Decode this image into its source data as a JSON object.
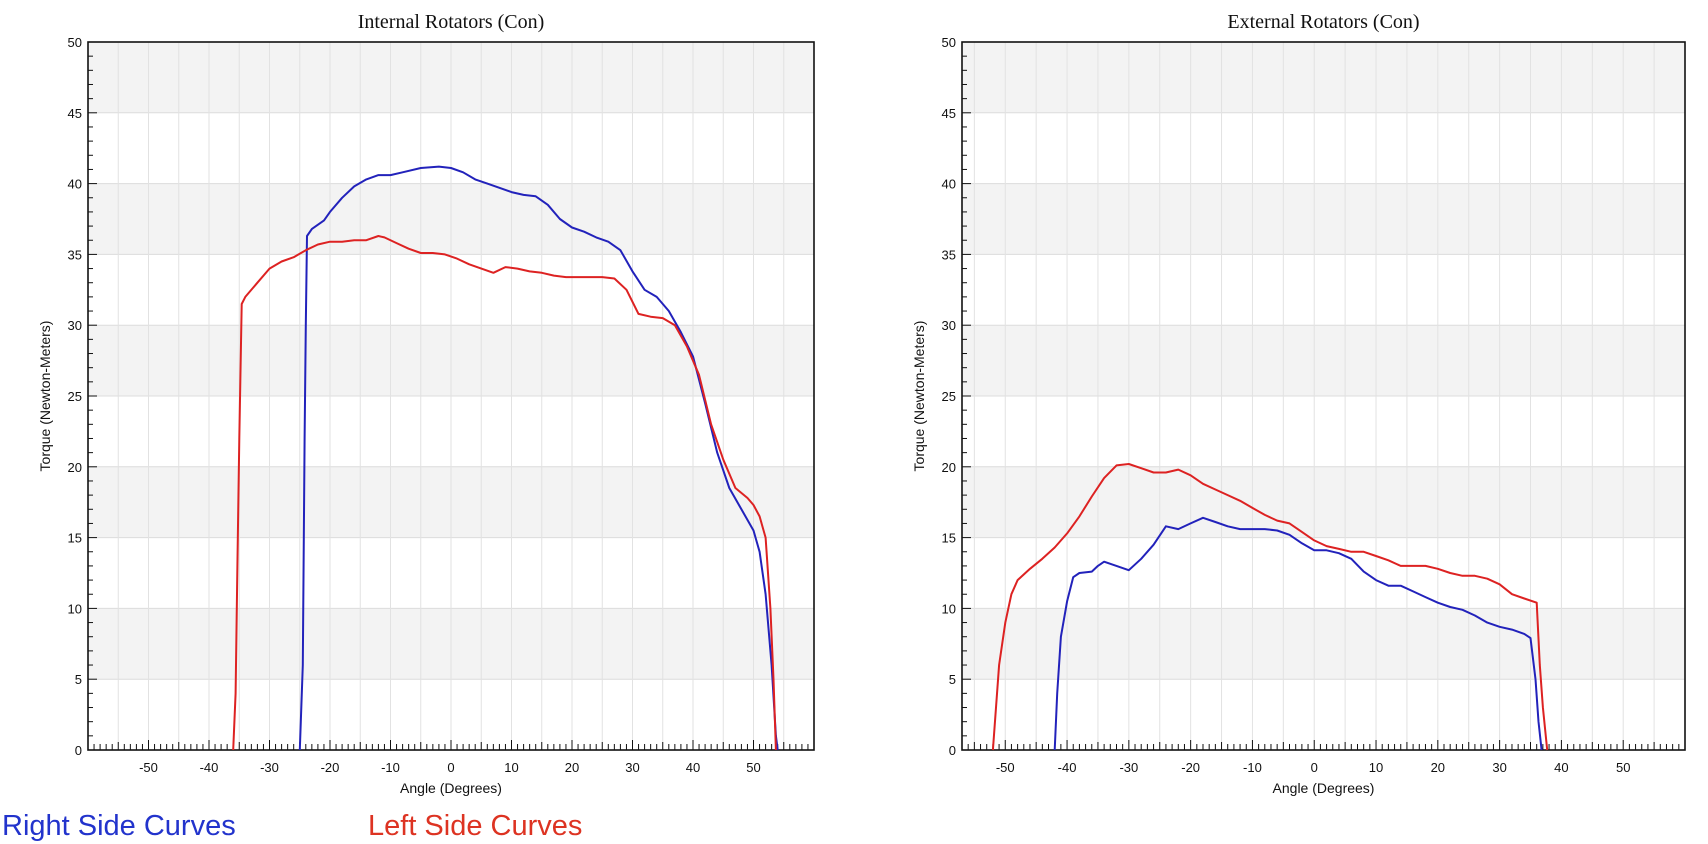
{
  "chart_data": [
    {
      "type": "line",
      "title": "Internal Rotators (Con)",
      "xlabel": "Angle (Degrees)",
      "ylabel": "Torque (Newton-Meters)",
      "xlim": [
        -60,
        60
      ],
      "ylim": [
        0,
        50
      ],
      "xticks": [
        "-50",
        "-40",
        "-30",
        "-20",
        "-10",
        "0",
        "10",
        "20",
        "30",
        "40",
        "50"
      ],
      "yticks": [
        "0",
        "5",
        "10",
        "15",
        "20",
        "25",
        "30",
        "35",
        "40",
        "45",
        "50"
      ],
      "grid": true,
      "series": [
        {
          "name": "Right Side Curves",
          "color": "#2222bb",
          "points": [
            [
              -25,
              0
            ],
            [
              -24.5,
              6
            ],
            [
              -24.2,
              22
            ],
            [
              -24,
              30
            ],
            [
              -23.8,
              36.3
            ],
            [
              -23,
              36.8
            ],
            [
              -21,
              37.4
            ],
            [
              -20,
              38
            ],
            [
              -18,
              39
            ],
            [
              -16,
              39.8
            ],
            [
              -14,
              40.3
            ],
            [
              -12,
              40.6
            ],
            [
              -10,
              40.6
            ],
            [
              -8,
              40.8
            ],
            [
              -5,
              41.1
            ],
            [
              -2,
              41.2
            ],
            [
              0,
              41.1
            ],
            [
              2,
              40.8
            ],
            [
              4,
              40.3
            ],
            [
              6,
              40
            ],
            [
              8,
              39.7
            ],
            [
              10,
              39.4
            ],
            [
              12,
              39.2
            ],
            [
              14,
              39.1
            ],
            [
              16,
              38.5
            ],
            [
              18,
              37.5
            ],
            [
              20,
              36.9
            ],
            [
              22,
              36.6
            ],
            [
              24,
              36.2
            ],
            [
              26,
              35.9
            ],
            [
              28,
              35.3
            ],
            [
              30,
              33.8
            ],
            [
              32,
              32.5
            ],
            [
              34,
              32
            ],
            [
              36,
              31
            ],
            [
              38,
              29.5
            ],
            [
              40,
              27.8
            ],
            [
              42,
              24.5
            ],
            [
              44,
              21
            ],
            [
              46,
              18.5
            ],
            [
              48,
              17
            ],
            [
              50,
              15.5
            ],
            [
              51,
              14
            ],
            [
              52,
              11
            ],
            [
              53,
              6
            ],
            [
              53.7,
              1
            ],
            [
              54,
              0
            ]
          ]
        },
        {
          "name": "Left Side Curves",
          "color": "#dd2222",
          "points": [
            [
              -36,
              0
            ],
            [
              -35.6,
              4
            ],
            [
              -35.3,
              13
            ],
            [
              -35,
              22
            ],
            [
              -34.6,
              31.5
            ],
            [
              -34,
              32
            ],
            [
              -32,
              33
            ],
            [
              -30,
              34
            ],
            [
              -28,
              34.5
            ],
            [
              -26,
              34.8
            ],
            [
              -24,
              35.3
            ],
            [
              -22,
              35.7
            ],
            [
              -20,
              35.9
            ],
            [
              -18,
              35.9
            ],
            [
              -16,
              36
            ],
            [
              -14,
              36
            ],
            [
              -12,
              36.3
            ],
            [
              -11,
              36.2
            ],
            [
              -9,
              35.8
            ],
            [
              -7,
              35.4
            ],
            [
              -5,
              35.1
            ],
            [
              -3,
              35.1
            ],
            [
              -1,
              35
            ],
            [
              1,
              34.7
            ],
            [
              3,
              34.3
            ],
            [
              5,
              34
            ],
            [
              7,
              33.7
            ],
            [
              9,
              34.1
            ],
            [
              11,
              34
            ],
            [
              13,
              33.8
            ],
            [
              15,
              33.7
            ],
            [
              17,
              33.5
            ],
            [
              19,
              33.4
            ],
            [
              21,
              33.4
            ],
            [
              23,
              33.4
            ],
            [
              25,
              33.4
            ],
            [
              27,
              33.3
            ],
            [
              29,
              32.5
            ],
            [
              31,
              30.8
            ],
            [
              33,
              30.6
            ],
            [
              35,
              30.5
            ],
            [
              37,
              30
            ],
            [
              39,
              28.5
            ],
            [
              41,
              26.5
            ],
            [
              43,
              23
            ],
            [
              45,
              20.5
            ],
            [
              47,
              18.5
            ],
            [
              49,
              17.8
            ],
            [
              50,
              17.3
            ],
            [
              51,
              16.5
            ],
            [
              52,
              15
            ],
            [
              52.8,
              10
            ],
            [
              53.3,
              5
            ],
            [
              53.7,
              0
            ]
          ]
        }
      ]
    },
    {
      "type": "line",
      "title": "External Rotators (Con)",
      "xlabel": "Angle (Degrees)",
      "ylabel": "Torque (Newton-Meters)",
      "xlim": [
        -57,
        60
      ],
      "ylim": [
        0,
        50
      ],
      "xticks": [
        "-50",
        "-40",
        "-30",
        "-20",
        "-10",
        "0",
        "10",
        "20",
        "30",
        "40",
        "50"
      ],
      "yticks": [
        "0",
        "5",
        "10",
        "15",
        "20",
        "25",
        "30",
        "35",
        "40",
        "45",
        "50"
      ],
      "grid": true,
      "series": [
        {
          "name": "Right Side Curves",
          "color": "#2222bb",
          "points": [
            [
              -42,
              0
            ],
            [
              -41.6,
              4
            ],
            [
              -41,
              8
            ],
            [
              -40,
              10.5
            ],
            [
              -39,
              12.2
            ],
            [
              -38,
              12.5
            ],
            [
              -36,
              12.6
            ],
            [
              -35,
              13
            ],
            [
              -34,
              13.3
            ],
            [
              -32,
              13
            ],
            [
              -30,
              12.7
            ],
            [
              -28,
              13.5
            ],
            [
              -26,
              14.5
            ],
            [
              -24,
              15.8
            ],
            [
              -22,
              15.6
            ],
            [
              -20,
              16
            ],
            [
              -18,
              16.4
            ],
            [
              -16,
              16.1
            ],
            [
              -14,
              15.8
            ],
            [
              -12,
              15.6
            ],
            [
              -10,
              15.6
            ],
            [
              -8,
              15.6
            ],
            [
              -6,
              15.5
            ],
            [
              -4,
              15.2
            ],
            [
              -2,
              14.6
            ],
            [
              0,
              14.1
            ],
            [
              2,
              14.1
            ],
            [
              4,
              13.9
            ],
            [
              6,
              13.5
            ],
            [
              8,
              12.6
            ],
            [
              10,
              12
            ],
            [
              12,
              11.6
            ],
            [
              14,
              11.6
            ],
            [
              16,
              11.2
            ],
            [
              18,
              10.8
            ],
            [
              20,
              10.4
            ],
            [
              22,
              10.1
            ],
            [
              24,
              9.9
            ],
            [
              26,
              9.5
            ],
            [
              28,
              9
            ],
            [
              30,
              8.7
            ],
            [
              32,
              8.5
            ],
            [
              34,
              8.2
            ],
            [
              35,
              7.9
            ],
            [
              35.8,
              5
            ],
            [
              36.3,
              2
            ],
            [
              36.8,
              0
            ]
          ]
        },
        {
          "name": "Left Side Curves",
          "color": "#dd2222",
          "points": [
            [
              -52,
              0
            ],
            [
              -51.5,
              3
            ],
            [
              -51,
              6
            ],
            [
              -50,
              9
            ],
            [
              -49,
              11
            ],
            [
              -48,
              12
            ],
            [
              -46,
              12.8
            ],
            [
              -44,
              13.5
            ],
            [
              -42,
              14.3
            ],
            [
              -40,
              15.3
            ],
            [
              -38,
              16.5
            ],
            [
              -36,
              17.9
            ],
            [
              -34,
              19.2
            ],
            [
              -32,
              20.1
            ],
            [
              -30,
              20.2
            ],
            [
              -28,
              19.9
            ],
            [
              -26,
              19.6
            ],
            [
              -24,
              19.6
            ],
            [
              -22,
              19.8
            ],
            [
              -20,
              19.4
            ],
            [
              -18,
              18.8
            ],
            [
              -16,
              18.4
            ],
            [
              -14,
              18
            ],
            [
              -12,
              17.6
            ],
            [
              -10,
              17.1
            ],
            [
              -8,
              16.6
            ],
            [
              -6,
              16.2
            ],
            [
              -4,
              16
            ],
            [
              -2,
              15.4
            ],
            [
              0,
              14.8
            ],
            [
              2,
              14.4
            ],
            [
              4,
              14.2
            ],
            [
              6,
              14
            ],
            [
              8,
              14
            ],
            [
              10,
              13.7
            ],
            [
              12,
              13.4
            ],
            [
              14,
              13
            ],
            [
              16,
              13
            ],
            [
              18,
              13
            ],
            [
              20,
              12.8
            ],
            [
              22,
              12.5
            ],
            [
              24,
              12.3
            ],
            [
              26,
              12.3
            ],
            [
              28,
              12.1
            ],
            [
              30,
              11.7
            ],
            [
              32,
              11
            ],
            [
              34,
              10.7
            ],
            [
              36,
              10.4
            ],
            [
              36.5,
              6
            ],
            [
              37,
              3
            ],
            [
              37.7,
              0
            ]
          ]
        }
      ]
    }
  ],
  "legend": {
    "right": {
      "label": "Right Side Curves",
      "color": "#2233cc"
    },
    "left": {
      "label": "Left Side Curves",
      "color": "#dd3322"
    }
  }
}
